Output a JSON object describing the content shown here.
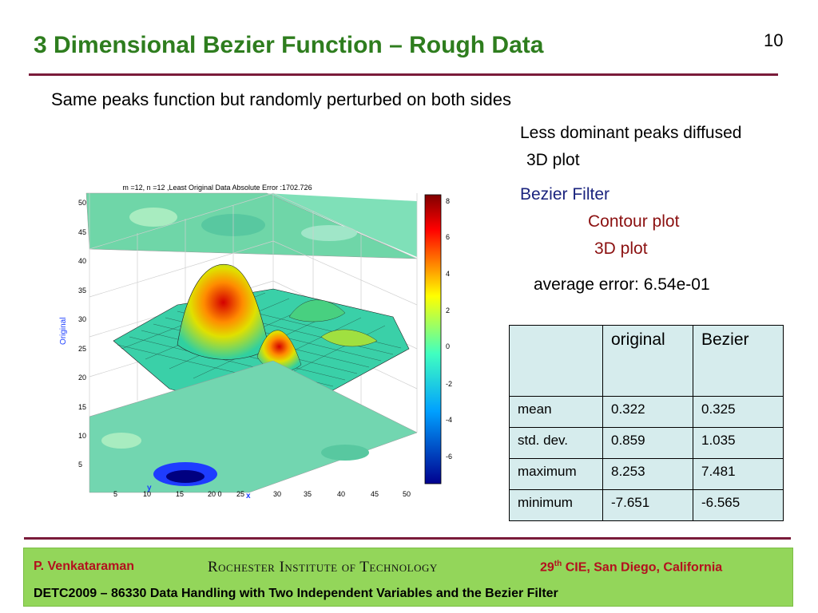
{
  "slide": {
    "title": "3 Dimensional Bezier Function – Rough Data",
    "page_number": "10",
    "subtitle": "Same peaks function but randomly perturbed on both sides"
  },
  "notes": {
    "less_dominant": "Less dominant peaks diffused",
    "plot_3d_1": "3D plot",
    "bezier_filter": "Bezier Filter",
    "contour_plot": "Contour plot",
    "plot_3d_2": "3D plot",
    "average_error": "average error: 6.54e-01"
  },
  "colors": {
    "title": "#2e7d1e",
    "rule": "#7a1b3a",
    "bezier_filter": "#1a237e",
    "contour_plot": "#8b1010",
    "table_bg": "#d6eced",
    "footer_bg": "#93d65a",
    "footer_accent": "#b3101e"
  },
  "plot": {
    "caption": "m =12, n =12 ,Least Original Data Absolute Error :1702.726",
    "axis_x_letter": "x",
    "axis_y_letter": "y",
    "axis_z_label": "Original",
    "x_ticks": [
      "5",
      "10",
      "15",
      "20 0",
      "25",
      "30",
      "35",
      "40",
      "45",
      "50"
    ],
    "y_ticks": [
      "50",
      "45",
      "40",
      "35",
      "30",
      "25",
      "20",
      "15",
      "10",
      "5"
    ],
    "colorbar_ticks": [
      "8",
      "6",
      "4",
      "2",
      "0",
      "-2",
      "-4",
      "-6"
    ]
  },
  "table": {
    "headers": [
      "",
      "original",
      "Bezier"
    ],
    "rows": [
      {
        "label": "mean",
        "original": "0.322",
        "bezier": "0.325"
      },
      {
        "label": "std. dev.",
        "original": "0.859",
        "bezier": "1.035"
      },
      {
        "label": "maximum",
        "original": "8.253",
        "bezier": "7.481"
      },
      {
        "label": "minimum",
        "original": "-7.651",
        "bezier": "-6.565"
      }
    ]
  },
  "footer": {
    "author": "P. Venkataraman",
    "institution": "Rochester Institute of Technology",
    "conference_num": "29",
    "conference_sup": "th",
    "conference_rest": " CIE, San Diego, California",
    "paper": "DETC2009 – 86330  Data Handling with Two Independent Variables and the Bezier Filter"
  }
}
